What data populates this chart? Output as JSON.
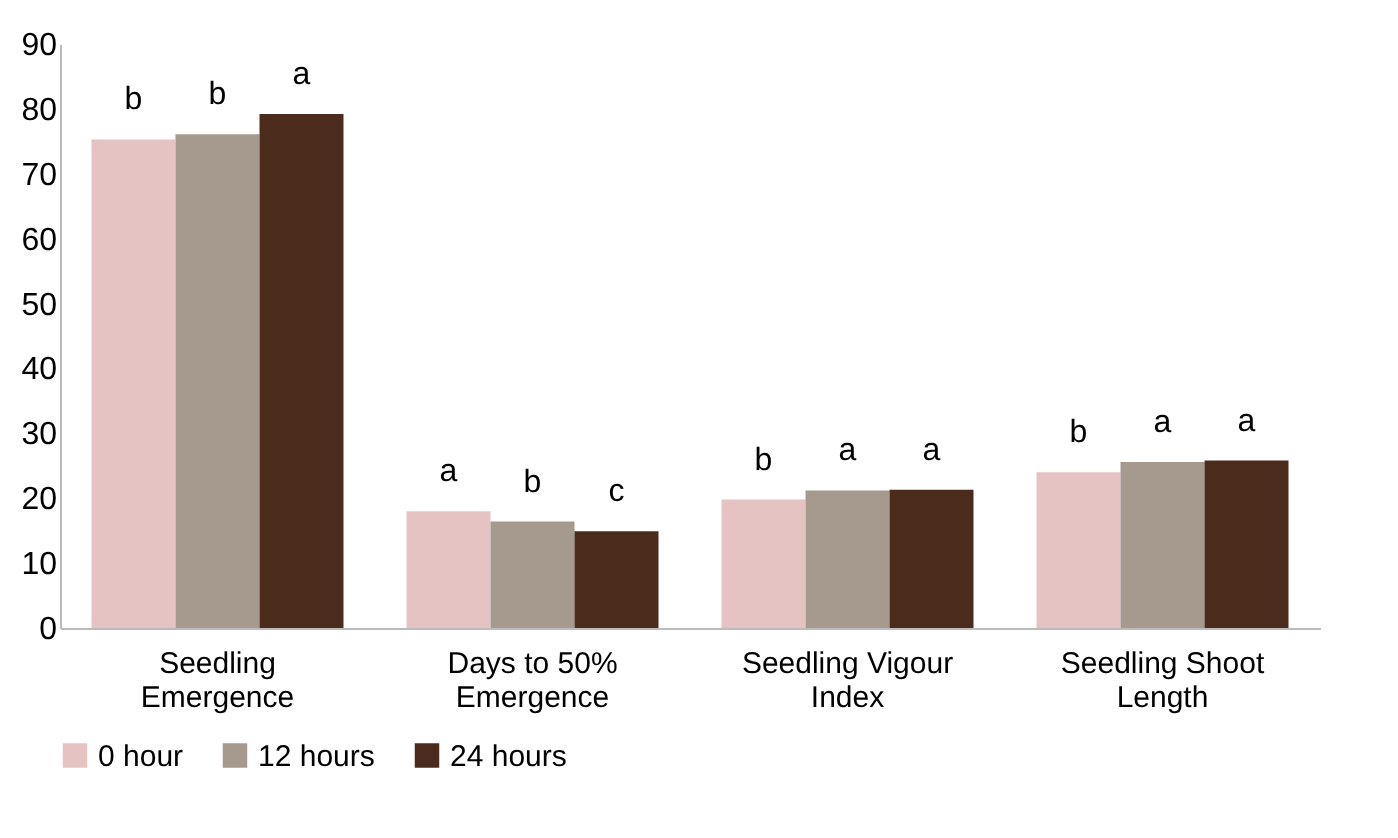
{
  "chart_data": {
    "type": "bar",
    "categories": [
      "Seedling Emergence",
      "Days to 50% Emergence",
      "Seedling Vigour Index",
      "Seedling Shoot Length"
    ],
    "series": [
      {
        "name": "0 hour",
        "color": "#e6c3c3",
        "values": [
          75.3,
          18.0,
          19.8,
          24.0
        ],
        "value_labels": [
          "b",
          "a",
          "b",
          "b"
        ]
      },
      {
        "name": "12 hours",
        "color": "#a69a8f",
        "values": [
          76.1,
          16.4,
          21.2,
          25.6
        ],
        "value_labels": [
          "b",
          "b",
          "a",
          "a"
        ]
      },
      {
        "name": "24 hours",
        "color": "#4b2c1c",
        "values": [
          79.2,
          14.9,
          21.3,
          25.8
        ],
        "value_labels": [
          "a",
          "c",
          "a",
          "a"
        ]
      }
    ],
    "ylim": [
      0,
      90
    ],
    "yticks": [
      0,
      10,
      20,
      30,
      40,
      50,
      60,
      70,
      80,
      90
    ],
    "grid": false,
    "legend": "bottom"
  }
}
